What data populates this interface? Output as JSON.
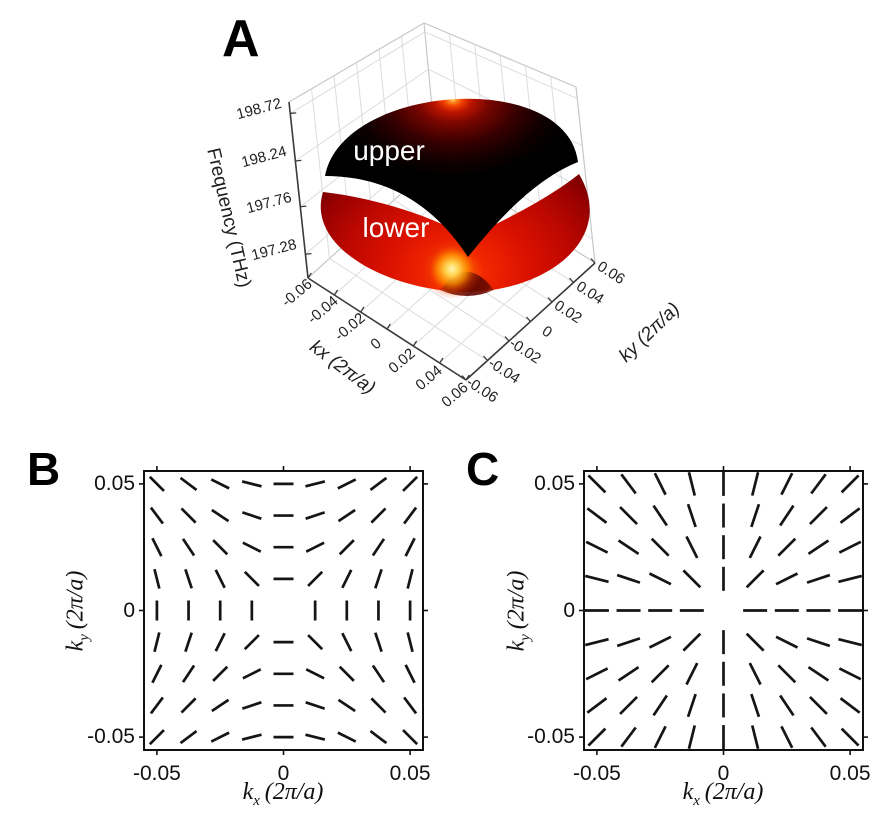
{
  "figure": {
    "background": "#ffffff"
  },
  "panels": {
    "a": {
      "letter": "A"
    },
    "b": {
      "letter": "B"
    },
    "c": {
      "letter": "C"
    }
  },
  "chart_data": [
    {
      "id": "A",
      "type": "surface3d",
      "zlabel": "Frequency (THz)",
      "xlabel": "kx (2π/a)",
      "ylabel": "ky (2π/a)",
      "z_ticks": [
        "197.28",
        "197.76",
        "198.24",
        "198.72"
      ],
      "x_ticks": [
        "-0.06",
        "-0.04",
        "-0.02",
        "0",
        "0.02",
        "0.04",
        "0.06"
      ],
      "y_ticks": [
        "-0.06",
        "-0.04",
        "-0.02",
        "0",
        "0.02",
        "0.04",
        "0.06"
      ],
      "x_range": [
        -0.06,
        0.06
      ],
      "y_range": [
        -0.06,
        0.06
      ],
      "z_range": [
        197.28,
        198.72
      ],
      "grid": true,
      "surfaces": [
        {
          "name": "upper-band",
          "label": "upper",
          "shape": "dome with central cone dipping to Dirac point",
          "hotspot_color": "#ff8c1f",
          "base_color": "#000000"
        },
        {
          "name": "lower-band",
          "label": "lower",
          "shape": "bowl with central cone rising to Dirac point",
          "hotspot_color": "#ffe070",
          "base_color": "#d81000"
        }
      ]
    },
    {
      "id": "B",
      "type": "quiver",
      "xlabel_parts": {
        "base": "k",
        "sub": "x",
        "unit": "(2π/a)"
      },
      "ylabel_parts": {
        "base": "k",
        "sub": "y",
        "unit": "(2π/a)"
      },
      "x_ticks": [
        "-0.05",
        "0",
        "0.05"
      ],
      "y_ticks_top_to_bottom": [
        "0.05",
        "0",
        "-0.05"
      ],
      "x_range": [
        -0.055,
        0.055
      ],
      "y_range": [
        -0.055,
        0.055
      ],
      "grid_points": {
        "min": -0.05,
        "max": 0.05,
        "n": 9,
        "origin_omitted": true
      },
      "pattern": "hyperbolic antivortex, line angle = 90° - azimuth (winding -1)",
      "angle_rule": "90deg_minus_azimuth",
      "dash_color": "#151515"
    },
    {
      "id": "C",
      "type": "quiver",
      "xlabel_parts": {
        "base": "k",
        "sub": "x",
        "unit": "(2π/a)"
      },
      "ylabel_parts": {
        "base": "k",
        "sub": "y",
        "unit": "(2π/a)"
      },
      "x_ticks": [
        "-0.05",
        "0",
        "0.05"
      ],
      "y_ticks_top_to_bottom": [
        "0.05",
        "0",
        "-0.05"
      ],
      "x_range": [
        -0.055,
        0.055
      ],
      "y_range": [
        -0.055,
        0.055
      ],
      "grid_points": {
        "min": -0.05,
        "max": 0.05,
        "n": 9,
        "origin_omitted": true
      },
      "pattern": "radial vortex, line angle = azimuth (winding +1)",
      "angle_rule": "azimuth",
      "dash_color": "#151515"
    }
  ]
}
